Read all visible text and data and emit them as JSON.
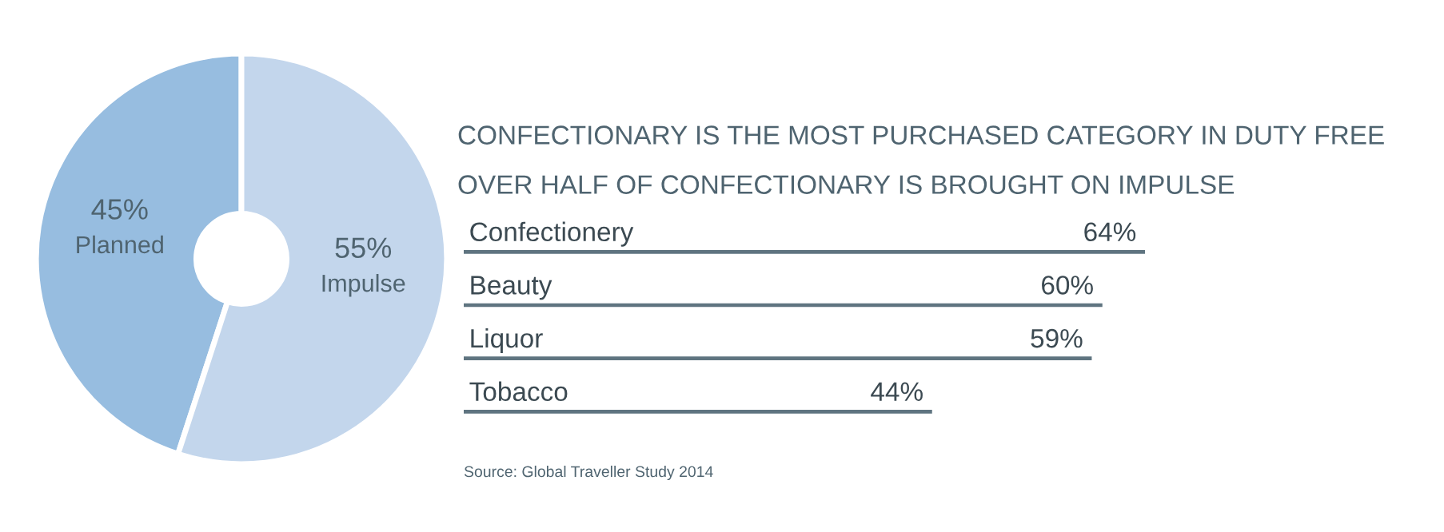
{
  "chart_data": [
    {
      "type": "donut",
      "categories": [
        "Planned",
        "Impulse"
      ],
      "values": [
        45,
        55
      ],
      "colors": [
        "#97bde0",
        "#c3d6ec"
      ],
      "value_labels": [
        "45%",
        "55%"
      ]
    },
    {
      "type": "bar",
      "orientation": "horizontal",
      "title": "CONFECTIONARY IS THE MOST PURCHASED CATEGORY IN DUTY FREE",
      "subtitle": "OVER HALF OF CONFECTIONARY IS BROUGHT ON IMPULSE",
      "categories": [
        "Confectionery",
        "Beauty",
        "Liquor",
        "Tobacco"
      ],
      "values": [
        64,
        60,
        59,
        44
      ],
      "value_labels": [
        "64%",
        "60%",
        "59%",
        "44%"
      ],
      "color": "#5f7480",
      "annotations": [
        "Source: Global Traveller Study 2014"
      ]
    }
  ]
}
